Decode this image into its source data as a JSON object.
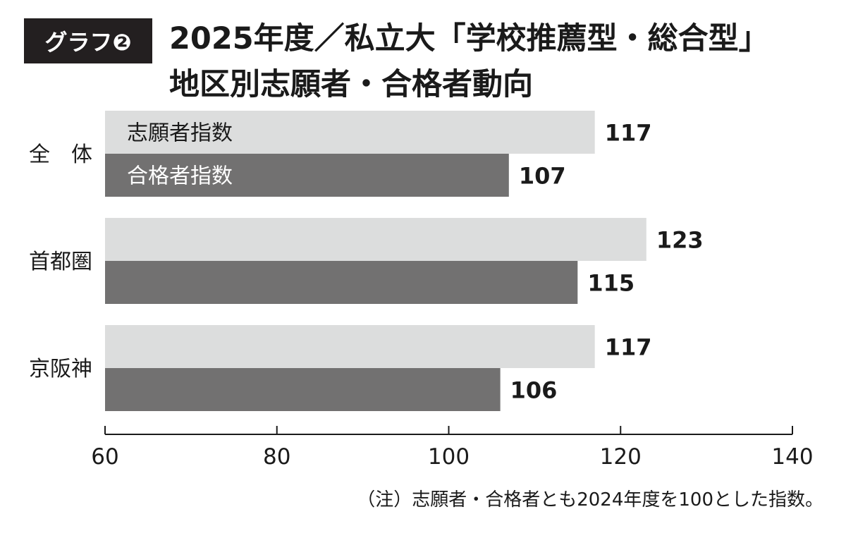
{
  "badge": "グラフ❷",
  "title_line1": "2025年度／私立大「学校推薦型・総合型」",
  "title_line2": "地区別志願者・合格者動向",
  "note": "（注）志願者・合格者とも2024年度を100とした指数。",
  "colors": {
    "applicants": "#dcdddd",
    "passers": "#727171",
    "text": "#1a1a1a"
  },
  "chart_data": {
    "type": "bar",
    "orientation": "horizontal",
    "categories": [
      "全　体",
      "首都圏",
      "京阪神"
    ],
    "series": [
      {
        "name": "志願者指数",
        "values": [
          117,
          123,
          117
        ]
      },
      {
        "name": "合格者指数",
        "values": [
          107,
          115,
          106
        ]
      }
    ],
    "xlim": [
      60,
      140
    ],
    "xticks": [
      60,
      80,
      100,
      120,
      140
    ],
    "legend": "inside-first-group",
    "grid": false
  }
}
